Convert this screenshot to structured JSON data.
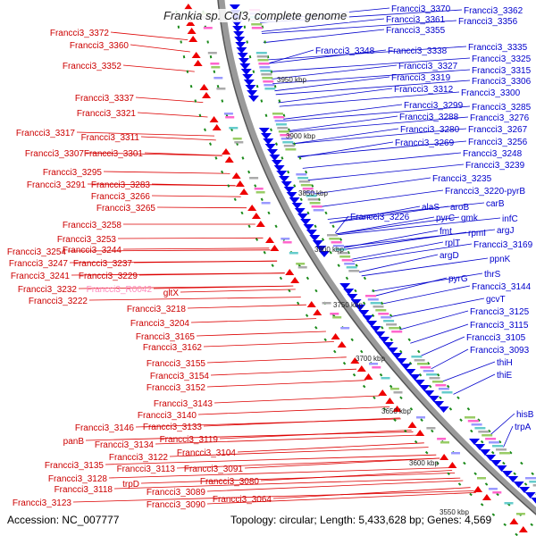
{
  "title": "Frankia sp. CcI3, complete genome",
  "accession": "Accession: NC_007777",
  "topology": "Topology: circular; Length: 5,433,628 bp; Genes: 4,569",
  "colors": {
    "left_labels": "#cc0000",
    "left_highlight": "#ff88bb",
    "right_labels": "#0000cc",
    "backbone": "#888888",
    "minus_strand_arrow": "#0000ee",
    "plus_strand_arrow": "#ee0000"
  },
  "kbp_ticks": [
    "3950 kbp",
    "3900 kbp",
    "3850 kbp",
    "3800 kbp",
    "3750 kbp",
    "3700 kbp",
    "3650 kbp",
    "3600 kbp",
    "3550 kbp"
  ],
  "left_labels": [
    "Francci3_3372",
    "Francci3_3360",
    "Francci3_3352",
    "Francci3_3337",
    "Francci3_3321",
    "Francci3_3317",
    "Francci3_3311",
    "Francci3_3307",
    "Francci3_3301",
    "Francci3_3295",
    "Francci3_3291",
    "Francci3_3283",
    "Francci3_3266",
    "Francci3_3265",
    "Francci3_3258",
    "Francci3_3253",
    "Francci3_3254",
    "Francci3_3244",
    "Francci3_3247",
    "Francci3_3237",
    "Francci3_3241",
    "Francci3_3229",
    "Francci3_3232",
    "Francci3_R0042",
    "Francci3_3222",
    "gltX",
    "Francci3_3218",
    "Francci3_3204",
    "Francci3_3165",
    "Francci3_3162",
    "Francci3_3155",
    "Francci3_3154",
    "Francci3_3152",
    "Francci3_3143",
    "Francci3_3140",
    "Francci3_3146",
    "Francci3_3133",
    "panB",
    "Francci3_3119",
    "Francci3_3134",
    "Francci3_3122",
    "Francci3_3104",
    "Francci3_3135",
    "Francci3_3113",
    "Francci3_3091",
    "Francci3_3128",
    "trpD",
    "Francci3_3118",
    "Francci3_3080",
    "Francci3_3089",
    "Francci3_3123",
    "Francci3_3090",
    "Francci3_3064"
  ],
  "right_labels": [
    "Francci3_3370",
    "Francci3_3362",
    "Francci3_3361",
    "Francci3_3356",
    "Francci3_3355",
    "Francci3_3348",
    "Francci3_3338",
    "Francci3_3335",
    "Francci3_3325",
    "Francci3_3327",
    "Francci3_3315",
    "Francci3_3319",
    "Francci3_3306",
    "Francci3_3312",
    "Francci3_3300",
    "Francci3_3299",
    "Francci3_3285",
    "Francci3_3288",
    "Francci3_3276",
    "Francci3_3280",
    "Francci3_3267",
    "Francci3_3269",
    "Francci3_3256",
    "Francci3_3248",
    "Francci3_3239",
    "Francci3_3235",
    "Francci3_3220-pyrB",
    "alaS",
    "aroB",
    "carB",
    "Francci3_3226",
    "pyrC",
    "gmk",
    "infC",
    "fmt",
    "rpmI",
    "argJ",
    "rplT",
    "Francci3_3169",
    "argD",
    "ppnK",
    "thrS",
    "pyrG",
    "Francci3_3144",
    "gcvT",
    "Francci3_3125",
    "Francci3_3115",
    "Francci3_3105",
    "Francci3_3093",
    "thiH",
    "thiE",
    "hisB",
    "trpA"
  ]
}
